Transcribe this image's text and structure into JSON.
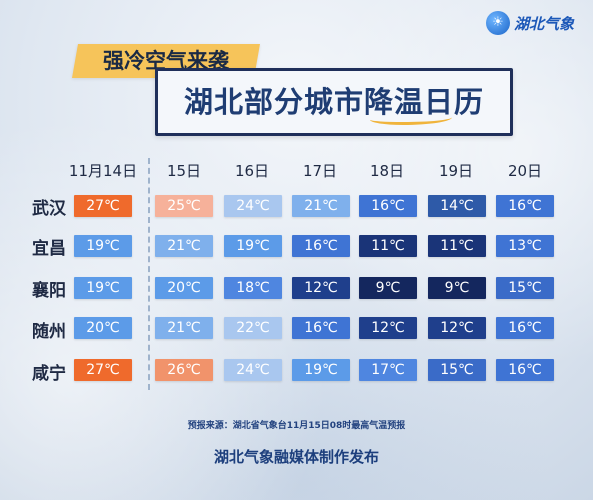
{
  "brand": {
    "name": "湖北气象",
    "icon": "weather-logo-icon"
  },
  "header": {
    "subtitle": "强冷空气来袭",
    "title": "湖北部分城市降温日历"
  },
  "dates": [
    "11月14日",
    "15日",
    "16日",
    "17日",
    "18日",
    "19日",
    "20日"
  ],
  "cities": [
    "武汉",
    "宜昌",
    "襄阳",
    "随州",
    "咸宁"
  ],
  "temps": [
    [
      "27℃",
      "25℃",
      "24℃",
      "21℃",
      "16℃",
      "14℃",
      "16℃"
    ],
    [
      "19℃",
      "21℃",
      "19℃",
      "16℃",
      "11℃",
      "11℃",
      "13℃"
    ],
    [
      "19℃",
      "20℃",
      "18℃",
      "12℃",
      "9℃",
      "9℃",
      "15℃"
    ],
    [
      "20℃",
      "21℃",
      "22℃",
      "16℃",
      "12℃",
      "12℃",
      "16℃"
    ],
    [
      "27℃",
      "26℃",
      "24℃",
      "19℃",
      "17℃",
      "15℃",
      "16℃"
    ]
  ],
  "temp_colors": {
    "27": "#ef6a2c",
    "26": "#f1936b",
    "25": "#f6b19a",
    "24": "#a9c7ef",
    "22": "#a9c7ef",
    "21": "#7fb0ec",
    "20": "#5c9be8",
    "19": "#5c9be8",
    "18": "#4f86e0",
    "17": "#4f86e0",
    "16": "#3f74d4",
    "15": "#3a6bc8",
    "14": "#2e5aa8",
    "13": "#3f74d4",
    "12": "#1f3f8c",
    "11": "#1a3478",
    "9": "#14275e"
  },
  "footer": {
    "source": "预报来源：湖北省气象台11月15日08时最高气温预报",
    "publisher": "湖北气象融媒体制作发布"
  }
}
